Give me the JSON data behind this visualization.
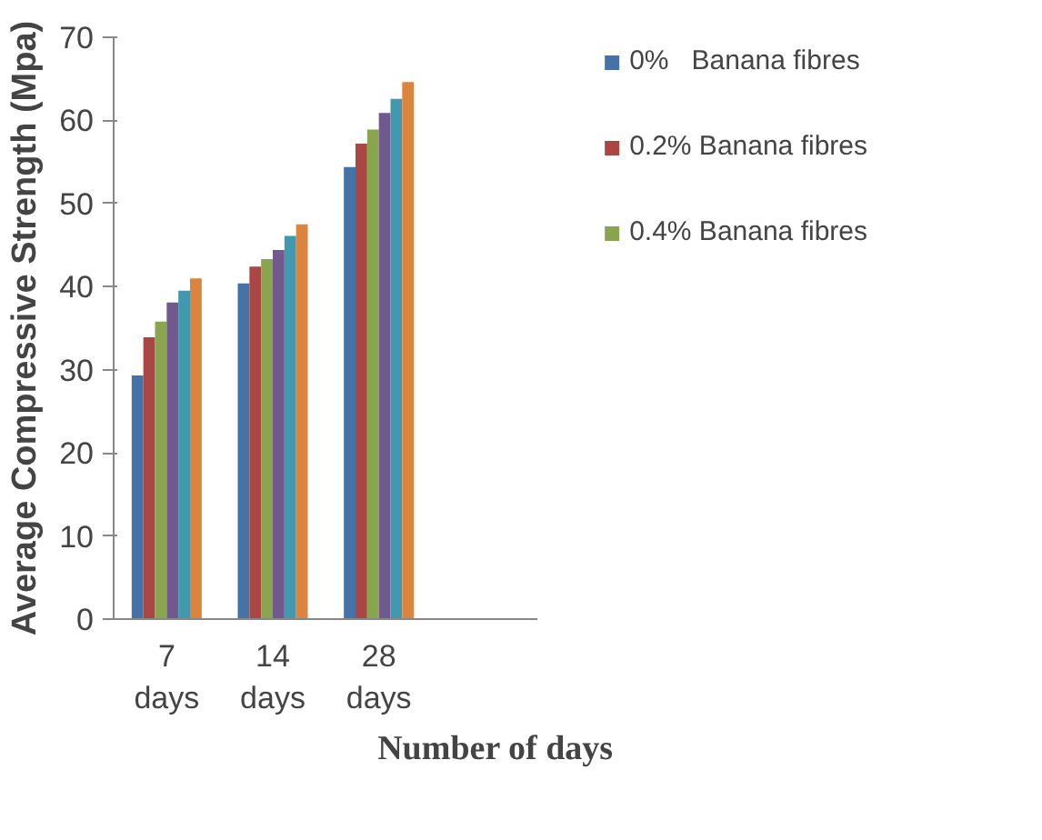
{
  "chart_data": {
    "type": "bar",
    "xlabel": "Number of days",
    "ylabel": "Average Compressive Strength (Mpa)",
    "categories": [
      "7 days",
      "14 days",
      "28 days",
      null
    ],
    "ylim": [
      0,
      70
    ],
    "yticks": [
      0,
      10,
      20,
      30,
      40,
      50,
      60,
      70
    ],
    "grid": false,
    "legend": "right",
    "series": [
      {
        "name": "0%   Banana fibres",
        "color": "#4572a7",
        "values": [
          29.3,
          40.4,
          54.4,
          null
        ]
      },
      {
        "name": "0.2% Banana fibres",
        "color": "#aa4643",
        "values": [
          33.9,
          42.4,
          57.2,
          null
        ]
      },
      {
        "name": "0.4% Banana fibres",
        "color": "#89a54e",
        "values": [
          35.8,
          43.3,
          58.9,
          null
        ]
      },
      {
        "color": "#71588f",
        "values": [
          38.1,
          44.4,
          60.9,
          null
        ]
      },
      {
        "color": "#4198af",
        "values": [
          39.5,
          46.1,
          62.6,
          null
        ]
      },
      {
        "color": "#db843d",
        "values": [
          41.0,
          47.5,
          64.6,
          null
        ]
      }
    ]
  }
}
